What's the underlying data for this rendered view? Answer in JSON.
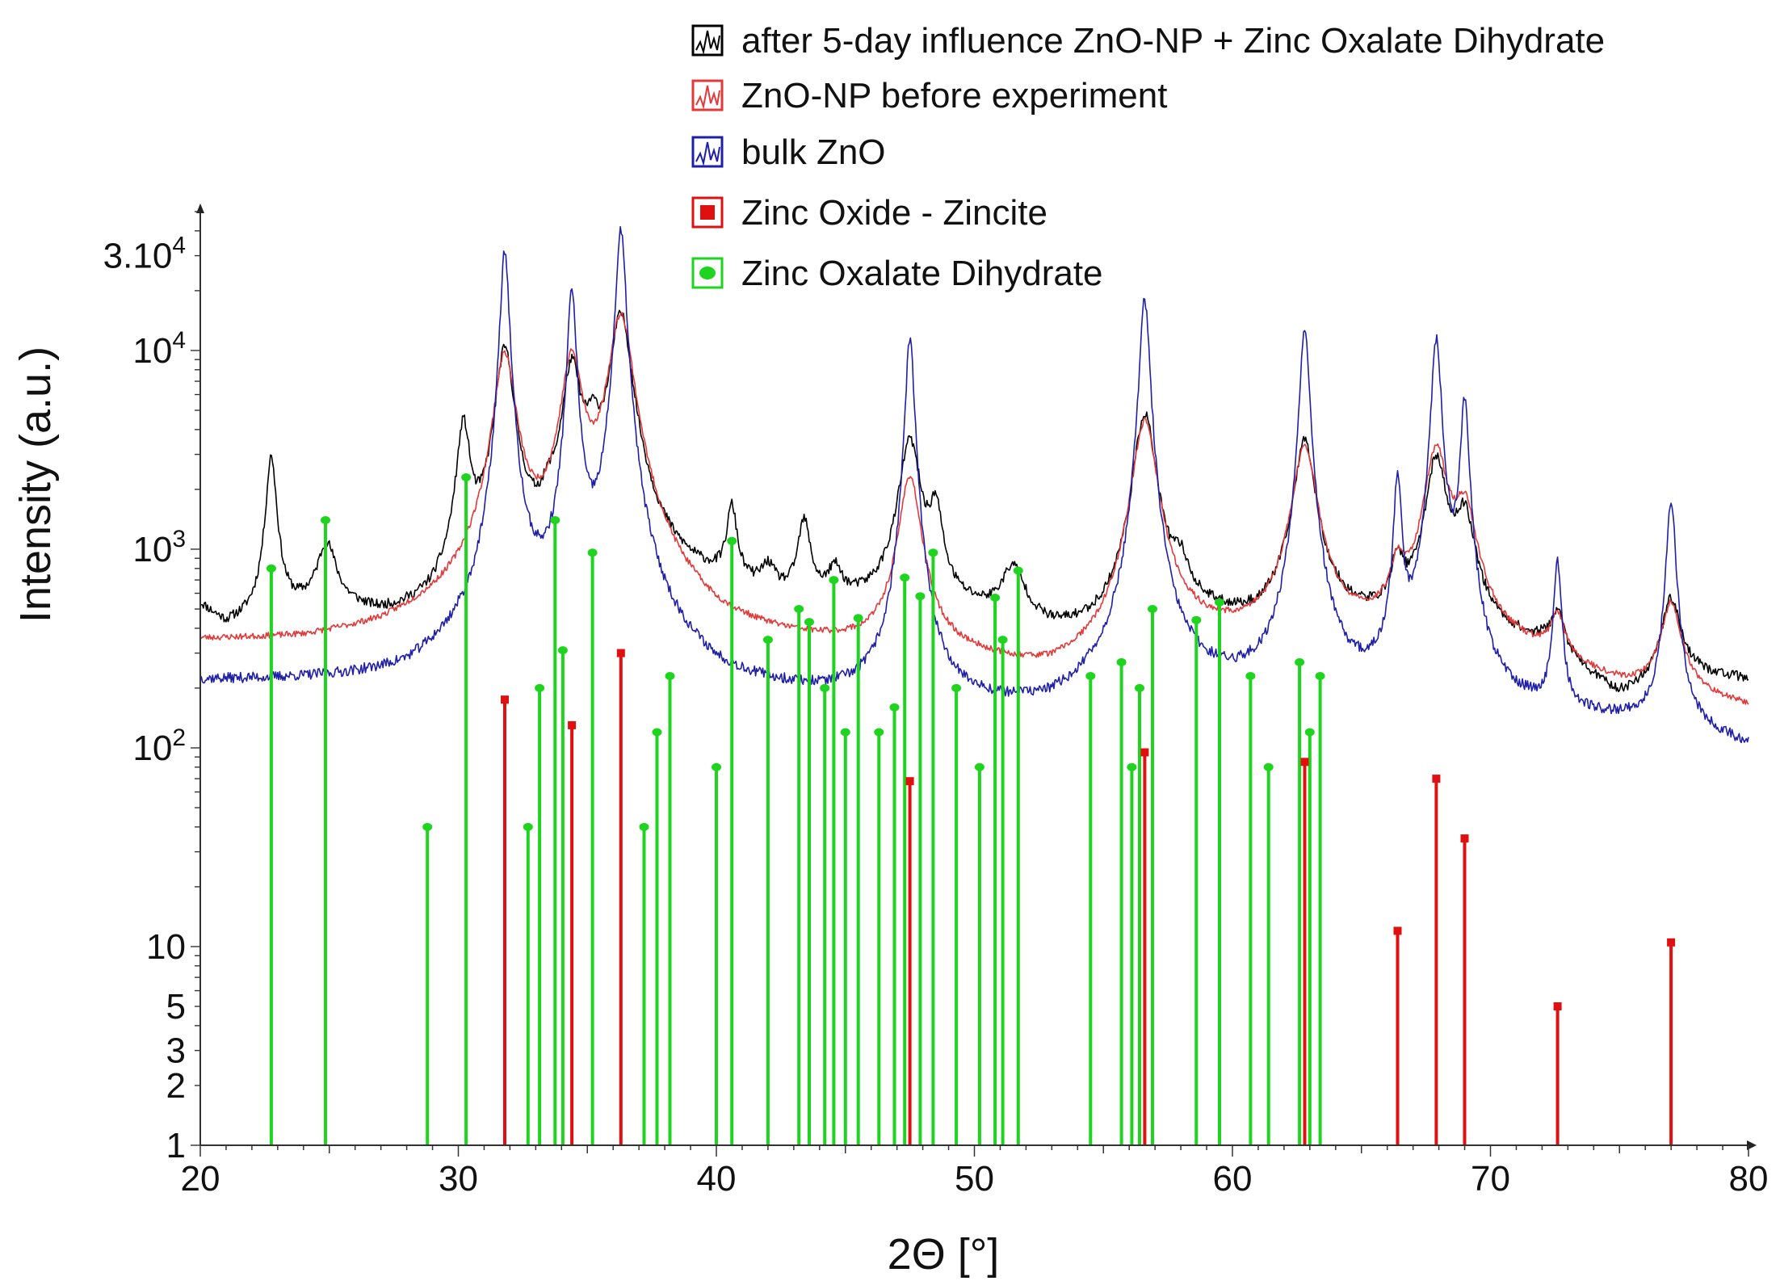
{
  "chart_data": {
    "type": "line",
    "title": "",
    "xlabel": "2Θ [°]",
    "ylabel": "Intensity (a.u.)",
    "xlim": [
      20,
      80
    ],
    "ylim": [
      1,
      50000
    ],
    "yscale": "log",
    "legend_position": "top-right",
    "x_ticks": [
      20,
      30,
      40,
      50,
      60,
      70,
      80
    ],
    "x_tick_labels": [
      "20",
      "30",
      "40",
      "50",
      "60",
      "70",
      "80"
    ],
    "y_ticks": [
      {
        "value": 1,
        "base": "1",
        "exp": ""
      },
      {
        "value": 2,
        "base": "2",
        "exp": ""
      },
      {
        "value": 3,
        "base": "3",
        "exp": ""
      },
      {
        "value": 5,
        "base": "5",
        "exp": ""
      },
      {
        "value": 10,
        "base": "10",
        "exp": ""
      },
      {
        "value": 100,
        "base": "10",
        "exp": "2"
      },
      {
        "value": 1000,
        "base": "10",
        "exp": "3"
      },
      {
        "value": 10000,
        "base": "10",
        "exp": "4"
      },
      {
        "value": 30000,
        "base": "3.10",
        "exp": "4"
      }
    ],
    "series": [
      {
        "name": "after 5-day influence ZnO-NP + Zinc Oxalate Dihydrate",
        "color": "#000000",
        "baseline": [
          [
            20,
            500
          ],
          [
            21,
            380
          ],
          [
            24,
            440
          ],
          [
            26,
            420
          ],
          [
            27,
            380
          ],
          [
            29,
            370
          ],
          [
            30,
            440
          ],
          [
            33,
            560
          ],
          [
            37,
            640
          ],
          [
            40,
            560
          ],
          [
            43,
            470
          ],
          [
            46,
            460
          ],
          [
            50,
            420
          ],
          [
            53,
            330
          ],
          [
            55,
            320
          ],
          [
            58,
            430
          ],
          [
            61,
            380
          ],
          [
            63,
            440
          ],
          [
            65,
            400
          ],
          [
            68,
            360
          ],
          [
            72,
            300
          ],
          [
            75,
            160
          ],
          [
            78,
            215
          ],
          [
            80,
            210
          ]
        ],
        "peaks": [
          [
            22.75,
            2900,
            0.2
          ],
          [
            24.9,
            1000,
            0.4
          ],
          [
            30.2,
            4000,
            0.25
          ],
          [
            31.8,
            10000,
            0.35
          ],
          [
            33.5,
            1000,
            0.3
          ],
          [
            34.4,
            8000,
            0.35
          ],
          [
            35.2,
            2800,
            0.3
          ],
          [
            36.3,
            15000,
            0.4
          ],
          [
            40.6,
            1500,
            0.2
          ],
          [
            42.0,
            700,
            0.3
          ],
          [
            43.4,
            1300,
            0.25
          ],
          [
            44.6,
            700,
            0.3
          ],
          [
            47.5,
            3500,
            0.4
          ],
          [
            48.5,
            1450,
            0.25
          ],
          [
            51.5,
            750,
            0.5
          ],
          [
            56.6,
            4800,
            0.4
          ],
          [
            58.0,
            700,
            0.3
          ],
          [
            62.8,
            3500,
            0.4
          ],
          [
            66.4,
            800,
            0.25
          ],
          [
            67.9,
            2800,
            0.4
          ],
          [
            69.0,
            1400,
            0.4
          ],
          [
            72.6,
            450,
            0.3
          ],
          [
            77.0,
            550,
            0.4
          ]
        ],
        "noise": 0.055,
        "seed": 11
      },
      {
        "name": "ZnO-NP before experiment",
        "color": "#e23a3a",
        "baseline": [
          [
            20,
            330
          ],
          [
            24,
            320
          ],
          [
            27,
            340
          ],
          [
            30,
            420
          ],
          [
            33,
            520
          ],
          [
            37,
            440
          ],
          [
            40,
            300
          ],
          [
            45,
            280
          ],
          [
            50,
            240
          ],
          [
            53,
            200
          ],
          [
            55,
            220
          ],
          [
            58,
            320
          ],
          [
            62,
            330
          ],
          [
            65,
            330
          ],
          [
            68,
            330
          ],
          [
            72,
            260
          ],
          [
            75,
            190
          ],
          [
            78,
            170
          ],
          [
            80,
            150
          ]
        ],
        "peaks": [
          [
            31.8,
            9500,
            0.4
          ],
          [
            34.4,
            9000,
            0.4
          ],
          [
            36.3,
            15000,
            0.45
          ],
          [
            47.5,
            2300,
            0.4
          ],
          [
            56.6,
            4400,
            0.45
          ],
          [
            62.8,
            3300,
            0.45
          ],
          [
            66.4,
            700,
            0.3
          ],
          [
            67.9,
            3100,
            0.45
          ],
          [
            69.0,
            1500,
            0.45
          ],
          [
            72.6,
            430,
            0.3
          ],
          [
            77.0,
            520,
            0.4
          ]
        ],
        "noise": 0.035,
        "seed": 23
      },
      {
        "name": "bulk ZnO",
        "color": "#1f1fa8",
        "baseline": [
          [
            20,
            210
          ],
          [
            24,
            205
          ],
          [
            28,
            200
          ],
          [
            30,
            240
          ],
          [
            33,
            280
          ],
          [
            37,
            240
          ],
          [
            40,
            170
          ],
          [
            45,
            155
          ],
          [
            50,
            140
          ],
          [
            53,
            135
          ],
          [
            55,
            160
          ],
          [
            58,
            180
          ],
          [
            62,
            160
          ],
          [
            65,
            150
          ],
          [
            70,
            130
          ],
          [
            75,
            125
          ],
          [
            78,
            110
          ],
          [
            80,
            95
          ]
        ],
        "peaks": [
          [
            31.8,
            32000,
            0.16
          ],
          [
            34.4,
            20000,
            0.16
          ],
          [
            36.3,
            40000,
            0.18
          ],
          [
            47.5,
            11500,
            0.16
          ],
          [
            56.6,
            18000,
            0.18
          ],
          [
            62.8,
            13000,
            0.18
          ],
          [
            66.4,
            2300,
            0.14
          ],
          [
            67.9,
            11500,
            0.18
          ],
          [
            69.0,
            5500,
            0.16
          ],
          [
            72.6,
            850,
            0.14
          ],
          [
            77.0,
            1700,
            0.18
          ]
        ],
        "noise": 0.06,
        "seed": 37
      }
    ],
    "reference_patterns": [
      {
        "name": "Zinc Oxide - Zincite",
        "color": "#e01010",
        "marker": "square",
        "peaks": [
          [
            31.8,
            175
          ],
          [
            34.4,
            130
          ],
          [
            36.3,
            300
          ],
          [
            47.5,
            68
          ],
          [
            56.6,
            95
          ],
          [
            62.8,
            85
          ],
          [
            66.4,
            12
          ],
          [
            67.9,
            70
          ],
          [
            69.0,
            35
          ],
          [
            72.6,
            5
          ],
          [
            77.0,
            10.5
          ]
        ]
      },
      {
        "name": "Zinc Oxalate Dihydrate",
        "color": "#1ed41e",
        "marker": "circle",
        "peaks": [
          [
            22.75,
            800
          ],
          [
            24.85,
            1400
          ],
          [
            28.8,
            40
          ],
          [
            30.3,
            2300
          ],
          [
            32.7,
            40
          ],
          [
            33.15,
            200
          ],
          [
            33.75,
            1400
          ],
          [
            34.05,
            310
          ],
          [
            35.2,
            960
          ],
          [
            37.2,
            40
          ],
          [
            37.7,
            120
          ],
          [
            38.2,
            230
          ],
          [
            40.0,
            80
          ],
          [
            40.6,
            1100
          ],
          [
            42.0,
            350
          ],
          [
            43.2,
            500
          ],
          [
            43.6,
            430
          ],
          [
            44.2,
            200
          ],
          [
            44.55,
            700
          ],
          [
            45.0,
            120
          ],
          [
            45.5,
            450
          ],
          [
            46.3,
            120
          ],
          [
            46.9,
            160
          ],
          [
            47.3,
            720
          ],
          [
            47.9,
            580
          ],
          [
            48.4,
            960
          ],
          [
            49.3,
            200
          ],
          [
            50.2,
            80
          ],
          [
            50.8,
            570
          ],
          [
            51.1,
            350
          ],
          [
            51.7,
            780
          ],
          [
            54.5,
            230
          ],
          [
            55.7,
            270
          ],
          [
            56.1,
            80
          ],
          [
            56.4,
            200
          ],
          [
            56.9,
            500
          ],
          [
            58.6,
            440
          ],
          [
            59.5,
            540
          ],
          [
            60.7,
            230
          ],
          [
            61.4,
            80
          ],
          [
            62.6,
            270
          ],
          [
            63.0,
            120
          ],
          [
            63.4,
            230
          ]
        ]
      }
    ]
  }
}
